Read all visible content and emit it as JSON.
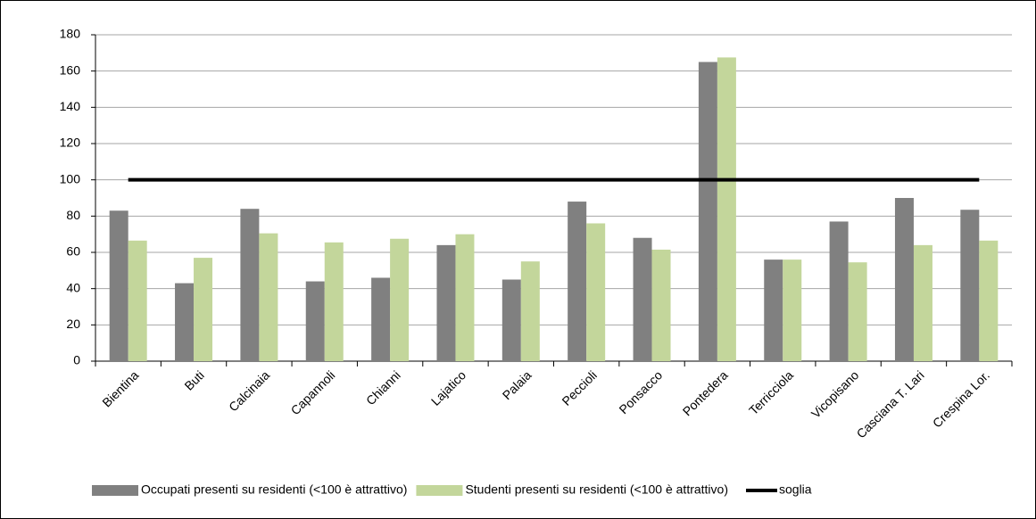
{
  "chart_data": {
    "type": "bar",
    "categories": [
      "Bientina",
      "Buti",
      "Calcinaia",
      "Capannoli",
      "Chianni",
      "Lajatico",
      "Palaia",
      "Peccioli",
      "Ponsacco",
      "Pontedera",
      "Terricciola",
      "Vicopisano",
      "Casciana T. Lari",
      "Crespina Lor."
    ],
    "series": [
      {
        "name": "Occupati presenti su residenti (<100 è attrattivo)",
        "color": "#808080",
        "type": "bar",
        "values": [
          83,
          43,
          84,
          44,
          46,
          64,
          45,
          88,
          68,
          165,
          56,
          77,
          90,
          83.5
        ]
      },
      {
        "name": "Studenti presenti su residenti (<100 è attrattivo)",
        "color": "#c3d69b",
        "type": "bar",
        "values": [
          66.5,
          57,
          70.5,
          65.5,
          67.5,
          70,
          55,
          76,
          61.5,
          167.5,
          56,
          54.5,
          64,
          66.5
        ]
      },
      {
        "name": "soglia",
        "color": "#000000",
        "type": "line",
        "values": [
          100,
          100,
          100,
          100,
          100,
          100,
          100,
          100,
          100,
          100,
          100,
          100,
          100,
          100
        ]
      }
    ],
    "ylim": [
      0,
      180
    ],
    "yticks": [
      0,
      20,
      40,
      60,
      80,
      100,
      120,
      140,
      160,
      180
    ],
    "grid": true,
    "legend": "bottom"
  }
}
